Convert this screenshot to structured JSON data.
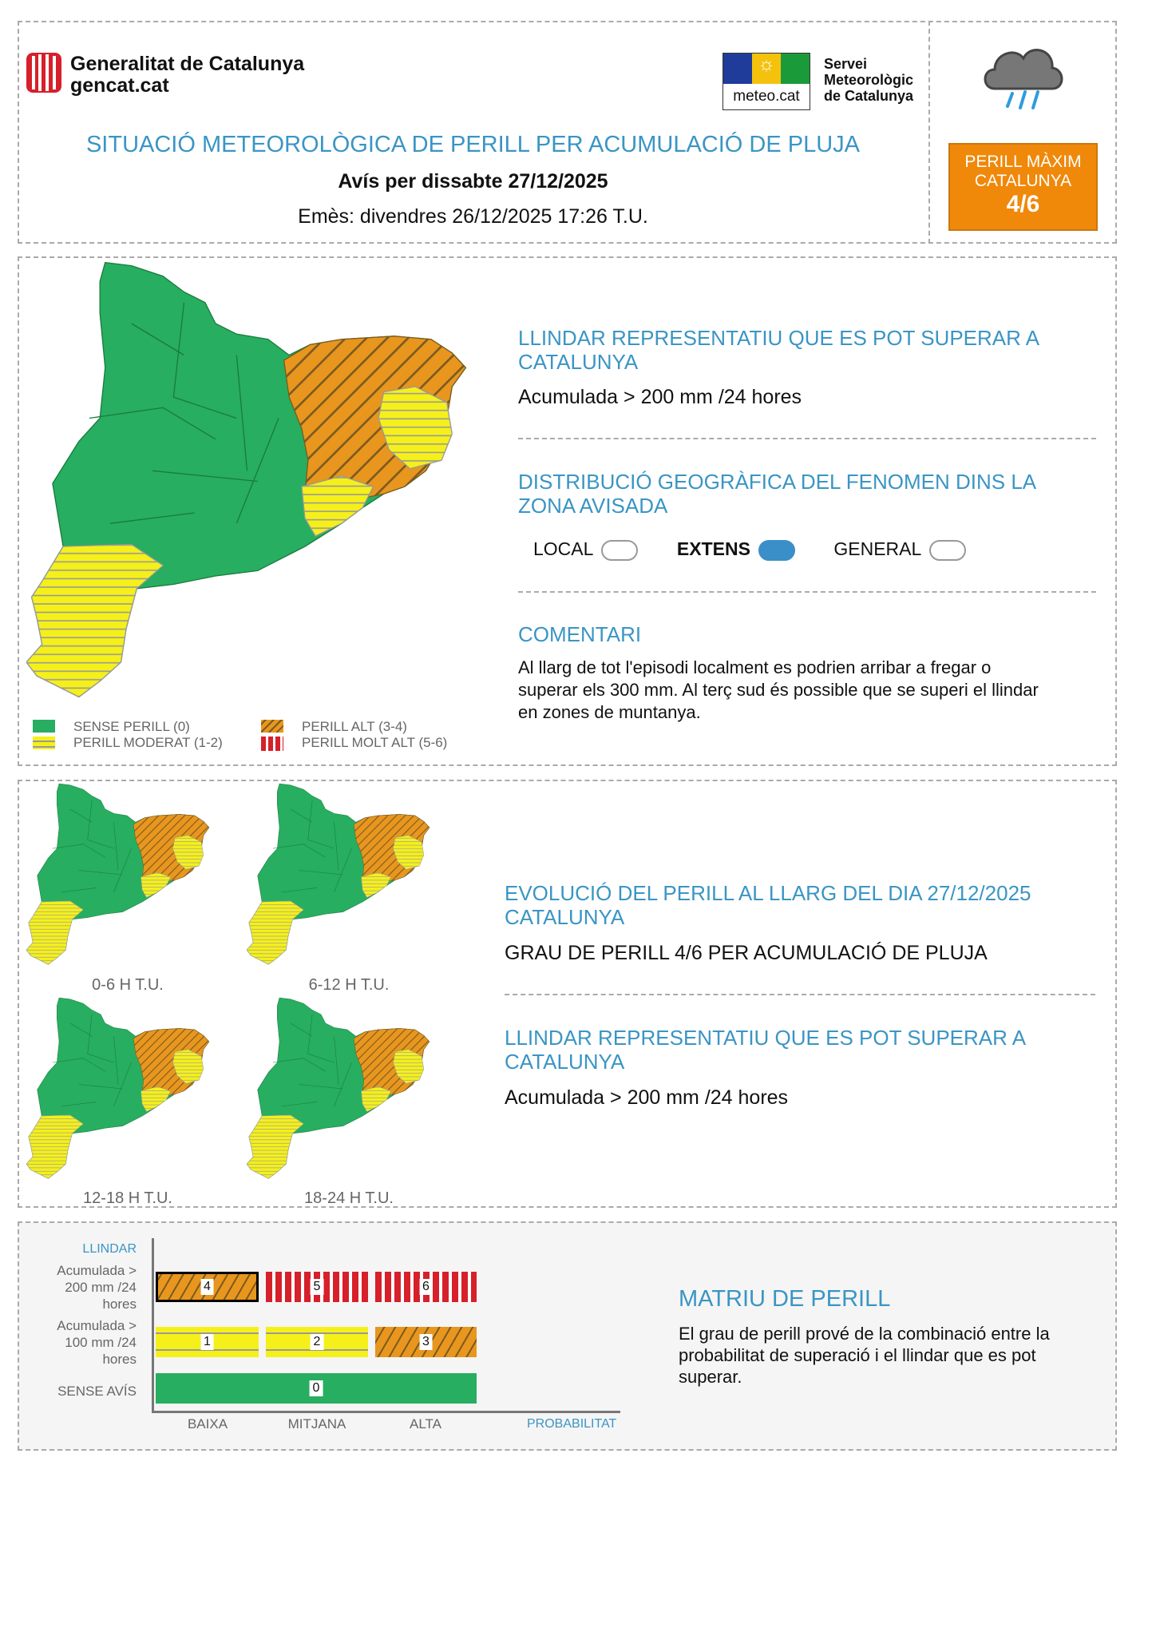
{
  "header": {
    "org_name": "Generalitat de Catalunya",
    "org_site": "gencat.cat",
    "meteo_logo_text": "meteo.cat",
    "smc_name": [
      "Servei",
      "Meteorològic",
      "de Catalunya"
    ],
    "title": "SITUACIÓ METEOROLÒGICA DE PERILL PER ACUMULACIÓ DE PLUJA",
    "subtitle": "Avís per dissabte 27/12/2025",
    "issued": "Emès: divendres 26/12/2025 17:26 T.U.",
    "weather_icon": "rain-cloud-icon",
    "max_danger": {
      "label1": "PERILL MÀXIM",
      "label2": "CATALUNYA",
      "value": "4/6",
      "color": "#f0880a"
    }
  },
  "summary": {
    "threshold_heading": "LLINDAR REPRESENTATIU QUE ES POT SUPERAR A CATALUNYA",
    "threshold_value": "Acumulada > 200 mm /24 hores",
    "distribution_heading": "DISTRIBUCIÓ GEOGRÀFICA DEL FENOMEN DINS LA ZONA AVISADA",
    "distribution_options": [
      {
        "label": "LOCAL",
        "selected": false
      },
      {
        "label": "EXTENS",
        "selected": true
      },
      {
        "label": "GENERAL",
        "selected": false
      }
    ],
    "comment_heading": "COMENTARI",
    "comment": "Al llarg de tot l'episodi localment es podrien arribar a fregar o superar els 300 mm. Al terç sud és possible que se superi el llindar en zones de muntanya."
  },
  "legend": [
    {
      "label": "SENSE PERILL (0)",
      "color": "#27ae60"
    },
    {
      "label": "PERILL MODERAT (1-2)",
      "color": "#f5f01a"
    },
    {
      "label": "PERILL ALT (3-4)",
      "color": "#e8961e"
    },
    {
      "label": "PERILL MOLT ALT (5-6)",
      "color": "#d6202a"
    }
  ],
  "evolution": {
    "periods": [
      "0-6 H T.U.",
      "6-12 H T.U.",
      "12-18 H T.U.",
      "18-24 H T.U."
    ],
    "heading": "EVOLUCIÓ DEL PERILL AL LLARG DEL DIA 27/12/2025 CATALUNYA",
    "grade": "GRAU DE PERILL 4/6 PER ACUMULACIÓ DE PLUJA",
    "threshold_heading": "LLINDAR REPRESENTATIU QUE ES POT SUPERAR A CATALUNYA",
    "threshold_value": "Acumulada > 200 mm /24 hores"
  },
  "matrix": {
    "y_title": "LLINDAR",
    "x_title": "PROBABILITAT",
    "rows": [
      "Acumulada > 200 mm /24 hores",
      "Acumulada > 100 mm /24 hores",
      "SENSE AVÍS"
    ],
    "columns": [
      "BAIXA",
      "MITJANA",
      "ALTA"
    ],
    "cells": [
      [
        "4",
        "5",
        "6"
      ],
      [
        "1",
        "2",
        "3"
      ]
    ],
    "no_warning": "0",
    "selected": "4",
    "heading": "MATRIU DE PERILL",
    "text": "El grau de perill prové de la combinació entre la probabilitat de superació i el llindar que es pot superar."
  }
}
